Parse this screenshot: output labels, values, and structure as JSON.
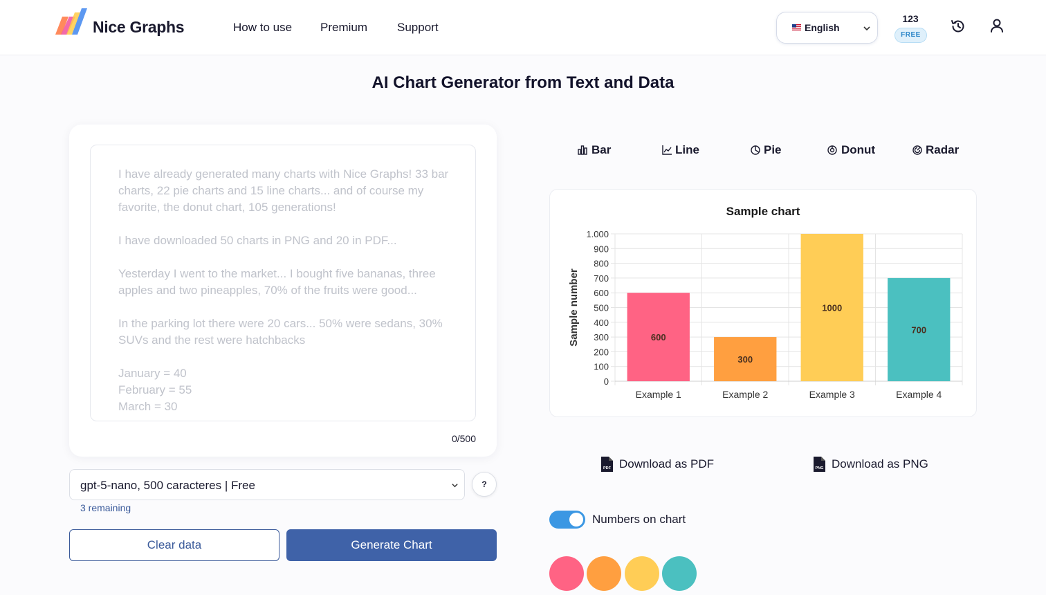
{
  "header": {
    "brand": "Nice Graphs",
    "nav": [
      "How to use",
      "Premium",
      "Support"
    ],
    "language": "English",
    "credits": "123",
    "credits_badge": "FREE"
  },
  "page_title": "AI Chart Generator from Text and Data",
  "input": {
    "placeholder": "I have already generated many charts with Nice Graphs! 33 bar charts, 22 pie charts and 15 line charts... and of course my favorite, the donut chart, 105 generations!\n\nI have downloaded 50 charts in PNG and 20 in PDF...\n\nYesterday I went to the market... I bought five bananas, three apples and two pineapples, 70% of the fruits were good...\n\nIn the parking lot there were 20 cars... 50% were sedans, 30% SUVs and the rest were hatchbacks\n\nJanuary = 40\nFebruary = 55\nMarch = 30",
    "counter": "0/500"
  },
  "model": {
    "selected": "gpt-5-nano, 500 caracteres | Free",
    "help": "?",
    "remaining": "3 remaining"
  },
  "buttons": {
    "clear": "Clear data",
    "generate": "Generate Chart"
  },
  "chart_tabs": [
    "Bar",
    "Line",
    "Pie",
    "Donut",
    "Radar"
  ],
  "downloads": {
    "pdf": "Download as PDF",
    "png": "Download as PNG"
  },
  "toggle_label": "Numbers on chart",
  "palette": [
    "#ff6384",
    "#ff9f40",
    "#ffcd56",
    "#4bc0c0"
  ],
  "chart_data": {
    "type": "bar",
    "title": "Sample chart",
    "xlabel": "",
    "ylabel": "Sample number",
    "categories": [
      "Example 1",
      "Example 2",
      "Example 3",
      "Example 4"
    ],
    "values": [
      600,
      300,
      1000,
      700
    ],
    "data_labels": [
      "600",
      "300",
      "1000",
      "700"
    ],
    "ylim": [
      0,
      1000
    ],
    "yticks": [
      0,
      100,
      200,
      300,
      400,
      500,
      600,
      700,
      800,
      900,
      1000
    ],
    "ytick_labels": [
      "0",
      "100",
      "200",
      "300",
      "400",
      "500",
      "600",
      "700",
      "800",
      "900",
      "1.000"
    ],
    "colors": [
      "#ff6384",
      "#ff9f40",
      "#ffcd56",
      "#4bc0c0"
    ],
    "grid": true,
    "legend": "none"
  }
}
